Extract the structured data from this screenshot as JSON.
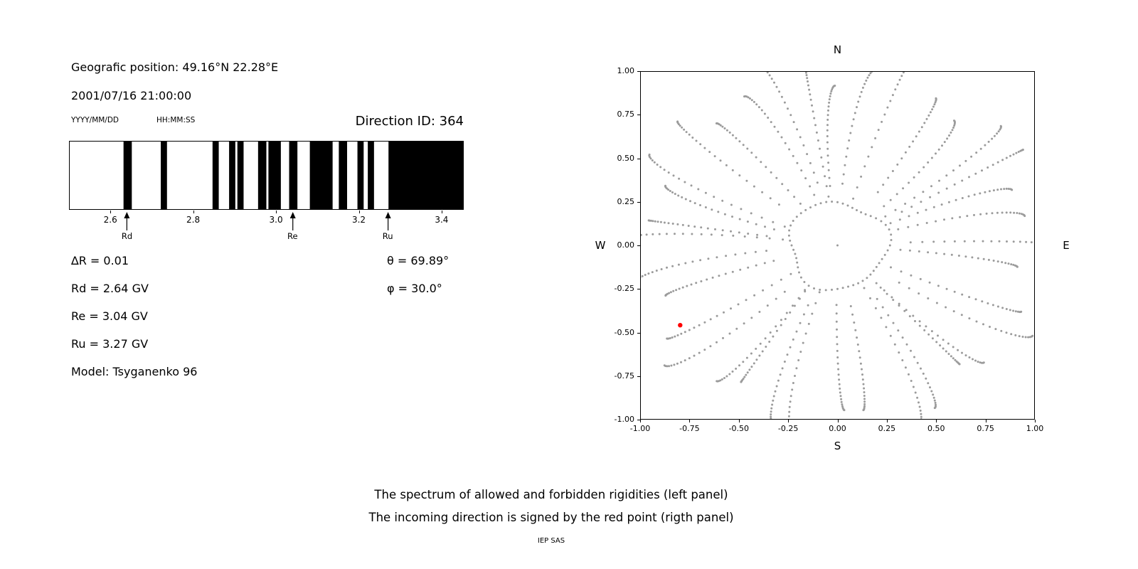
{
  "header": {
    "geographic_position": "Geografic position: 49.16°N 22.28°E",
    "datetime": "2001/07/16 21:00:00",
    "date_format_label": "YYYY/MM/DD",
    "time_format_label": "HH:MM:SS",
    "direction_id": "Direction ID: 364"
  },
  "parameters": {
    "delta_r": "∆R = 0.01",
    "theta": "θ = 69.89°",
    "rd": "Rd = 2.64 GV",
    "phi": "φ = 30.0°",
    "re": "Re = 3.04 GV",
    "ru": "Ru = 3.27 GV",
    "model": "Model: Tsyganenko 96"
  },
  "caption": {
    "line1": "The spectrum of allowed and forbidden rigidities (left panel)",
    "line2": "The incoming direction is signed by the red point (rigth panel)",
    "credit": "IEP SAS"
  },
  "chart_data": [
    {
      "type": "barcode",
      "title": "Spectrum of allowed (black) and forbidden (white) rigidities",
      "x_unit": "GV",
      "xlim": [
        2.5,
        3.45
      ],
      "xtick_labels": [
        "2.6",
        "2.8",
        "3.0",
        "3.2",
        "3.4"
      ],
      "delta_r_gv": 0.01,
      "allowed_segments_gv": [
        [
          2.63,
          2.65
        ],
        [
          2.72,
          2.735
        ],
        [
          2.845,
          2.86
        ],
        [
          2.885,
          2.9
        ],
        [
          2.905,
          2.92
        ],
        [
          2.955,
          2.975
        ],
        [
          2.98,
          3.01
        ],
        [
          3.03,
          3.05
        ],
        [
          3.08,
          3.135
        ],
        [
          3.15,
          3.17
        ],
        [
          3.195,
          3.21
        ],
        [
          3.22,
          3.235
        ],
        [
          3.27,
          3.45
        ]
      ],
      "markers": [
        {
          "label": "Rd",
          "value_gv": 2.64
        },
        {
          "label": "Re",
          "value_gv": 3.04
        },
        {
          "label": "Ru",
          "value_gv": 3.27
        }
      ],
      "bar_color": "#000000"
    },
    {
      "type": "scatter",
      "title": "Incoming / asymptotic directions; red point marks the incoming direction",
      "xlim": [
        -1,
        1
      ],
      "ylim": [
        -1,
        1
      ],
      "xtick_labels": [
        "-1.00",
        "-0.75",
        "-0.50",
        "-0.25",
        "0.00",
        "0.25",
        "0.50",
        "0.75",
        "1.00"
      ],
      "ytick_labels": [
        "-1.00",
        "-0.75",
        "-0.50",
        "-0.25",
        "0.00",
        "0.25",
        "0.50",
        "0.75",
        "1.00"
      ],
      "compass": {
        "top": "N",
        "bottom": "S",
        "left": "W",
        "right": "E"
      },
      "grid": false,
      "dot_color": "#9b9b9b",
      "red_point": {
        "x": -0.8,
        "y": -0.46,
        "color": "#ff0000"
      },
      "pattern": {
        "spoke_count": 36,
        "spoke_r_inner": 0.33,
        "spoke_r_outer": 1.02,
        "dots_per_spoke": 24,
        "inner_ring_radius": 0.25,
        "inner_ring_dots": 56,
        "center_dot": true
      }
    }
  ]
}
